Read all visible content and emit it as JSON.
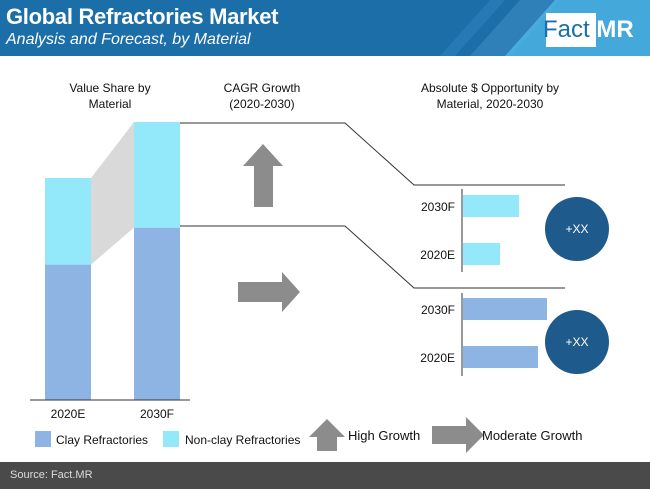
{
  "header": {
    "title": "Global Refractories Market",
    "subtitle": "Analysis and Forecast, by Material",
    "logo_fact": "Fact",
    "logo_mr": ".MR"
  },
  "footer": {
    "source": "Source: Fact.MR"
  },
  "colors": {
    "header_bg": "#1b6ea8",
    "clay": "#8eb4e3",
    "nonclay": "#93e9f9",
    "circle": "#1f5a8c",
    "arrow": "#8c8c8c"
  },
  "chart_data": {
    "type": "bar",
    "sections": {
      "value_share_title": "Value Share by Material",
      "cagr_title": "CAGR Growth (2020-2030)",
      "opportunity_title": "Absolute $ Opportunity by Material, 2020-2030"
    },
    "value_share": {
      "categories": [
        "2020E",
        "2030F"
      ],
      "series": [
        {
          "name": "Clay Refractories",
          "values": [
            61,
            62
          ]
        },
        {
          "name": "Non-clay Refractories",
          "values": [
            39,
            38
          ]
        }
      ]
    },
    "growth_indicators": [
      {
        "material": "Non-clay Refractories",
        "growth": "High Growth",
        "arrow": "up"
      },
      {
        "material": "Clay Refractories",
        "growth": "Moderate Growth",
        "arrow": "right"
      }
    ],
    "opportunity": [
      {
        "material": "Non-clay Refractories",
        "categories": [
          "2030F",
          "2020E"
        ],
        "values": [
          56,
          37
        ],
        "badge": "+XX"
      },
      {
        "material": "Clay Refractories",
        "categories": [
          "2030F",
          "2020E"
        ],
        "values": [
          84,
          75
        ],
        "badge": "+XX"
      }
    ],
    "legend": {
      "items": [
        "Clay Refractories",
        "Non-clay Refractories"
      ],
      "growth_items": [
        "High Growth",
        "Moderate Growth"
      ],
      "placement": "bottom"
    }
  }
}
